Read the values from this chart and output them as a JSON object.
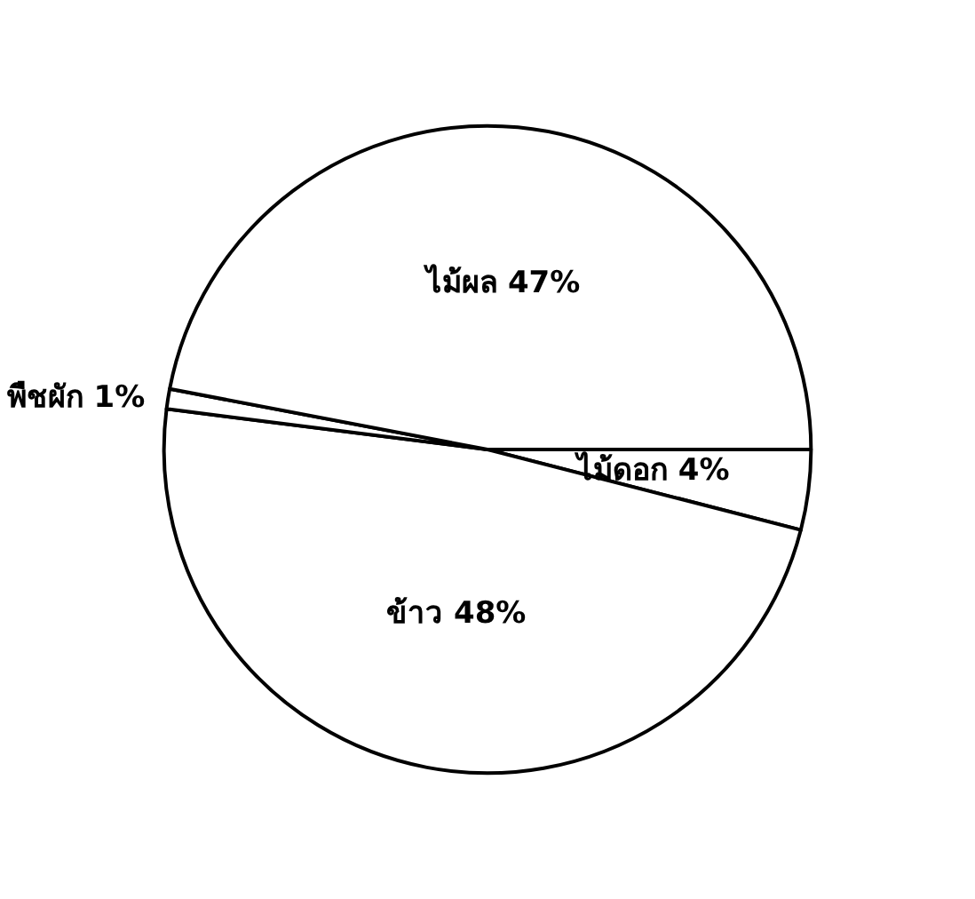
{
  "chart_data": {
    "type": "pie",
    "categories": [
      "ไม้ดอก",
      "ข้าว",
      "พืชผัก",
      "ไม้ผล"
    ],
    "values": [
      4,
      48,
      1,
      47
    ],
    "colors": [
      "#ffffff",
      "#ffffff",
      "#ffffff",
      "#ffffff"
    ],
    "value_labels": [
      "4%",
      "48%",
      "1%",
      "47%"
    ]
  }
}
